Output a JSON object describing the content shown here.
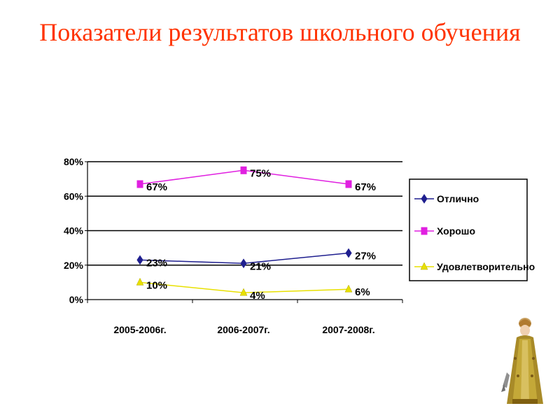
{
  "slide": {
    "title": "Показатели результатов школьного обучения"
  },
  "chart_data": {
    "type": "line",
    "categories": [
      "2005-2006г.",
      "2006-2007г.",
      "2007-2008г."
    ],
    "series": [
      {
        "name": "Отлично",
        "values": [
          23,
          21,
          27
        ],
        "labels": [
          "23%",
          "21%",
          "27%"
        ],
        "color": "#1f1f8f",
        "marker": "diamond"
      },
      {
        "name": "Хорошо",
        "values": [
          67,
          75,
          67
        ],
        "labels": [
          "67%",
          "75%",
          "67%"
        ],
        "color": "#e020e0",
        "marker": "square"
      },
      {
        "name": "Удовлетворительно",
        "values": [
          10,
          4,
          6
        ],
        "labels": [
          "10%",
          "4%",
          "6%"
        ],
        "color": "#e8e000",
        "marker": "triangle"
      }
    ],
    "yticks": [
      "0%",
      "20%",
      "40%",
      "60%",
      "80%"
    ],
    "ytick_values": [
      0,
      20,
      40,
      60,
      80
    ],
    "ylim": [
      0,
      80
    ],
    "grid": true,
    "legend": "right",
    "title": "",
    "xlabel": "",
    "ylabel": ""
  }
}
